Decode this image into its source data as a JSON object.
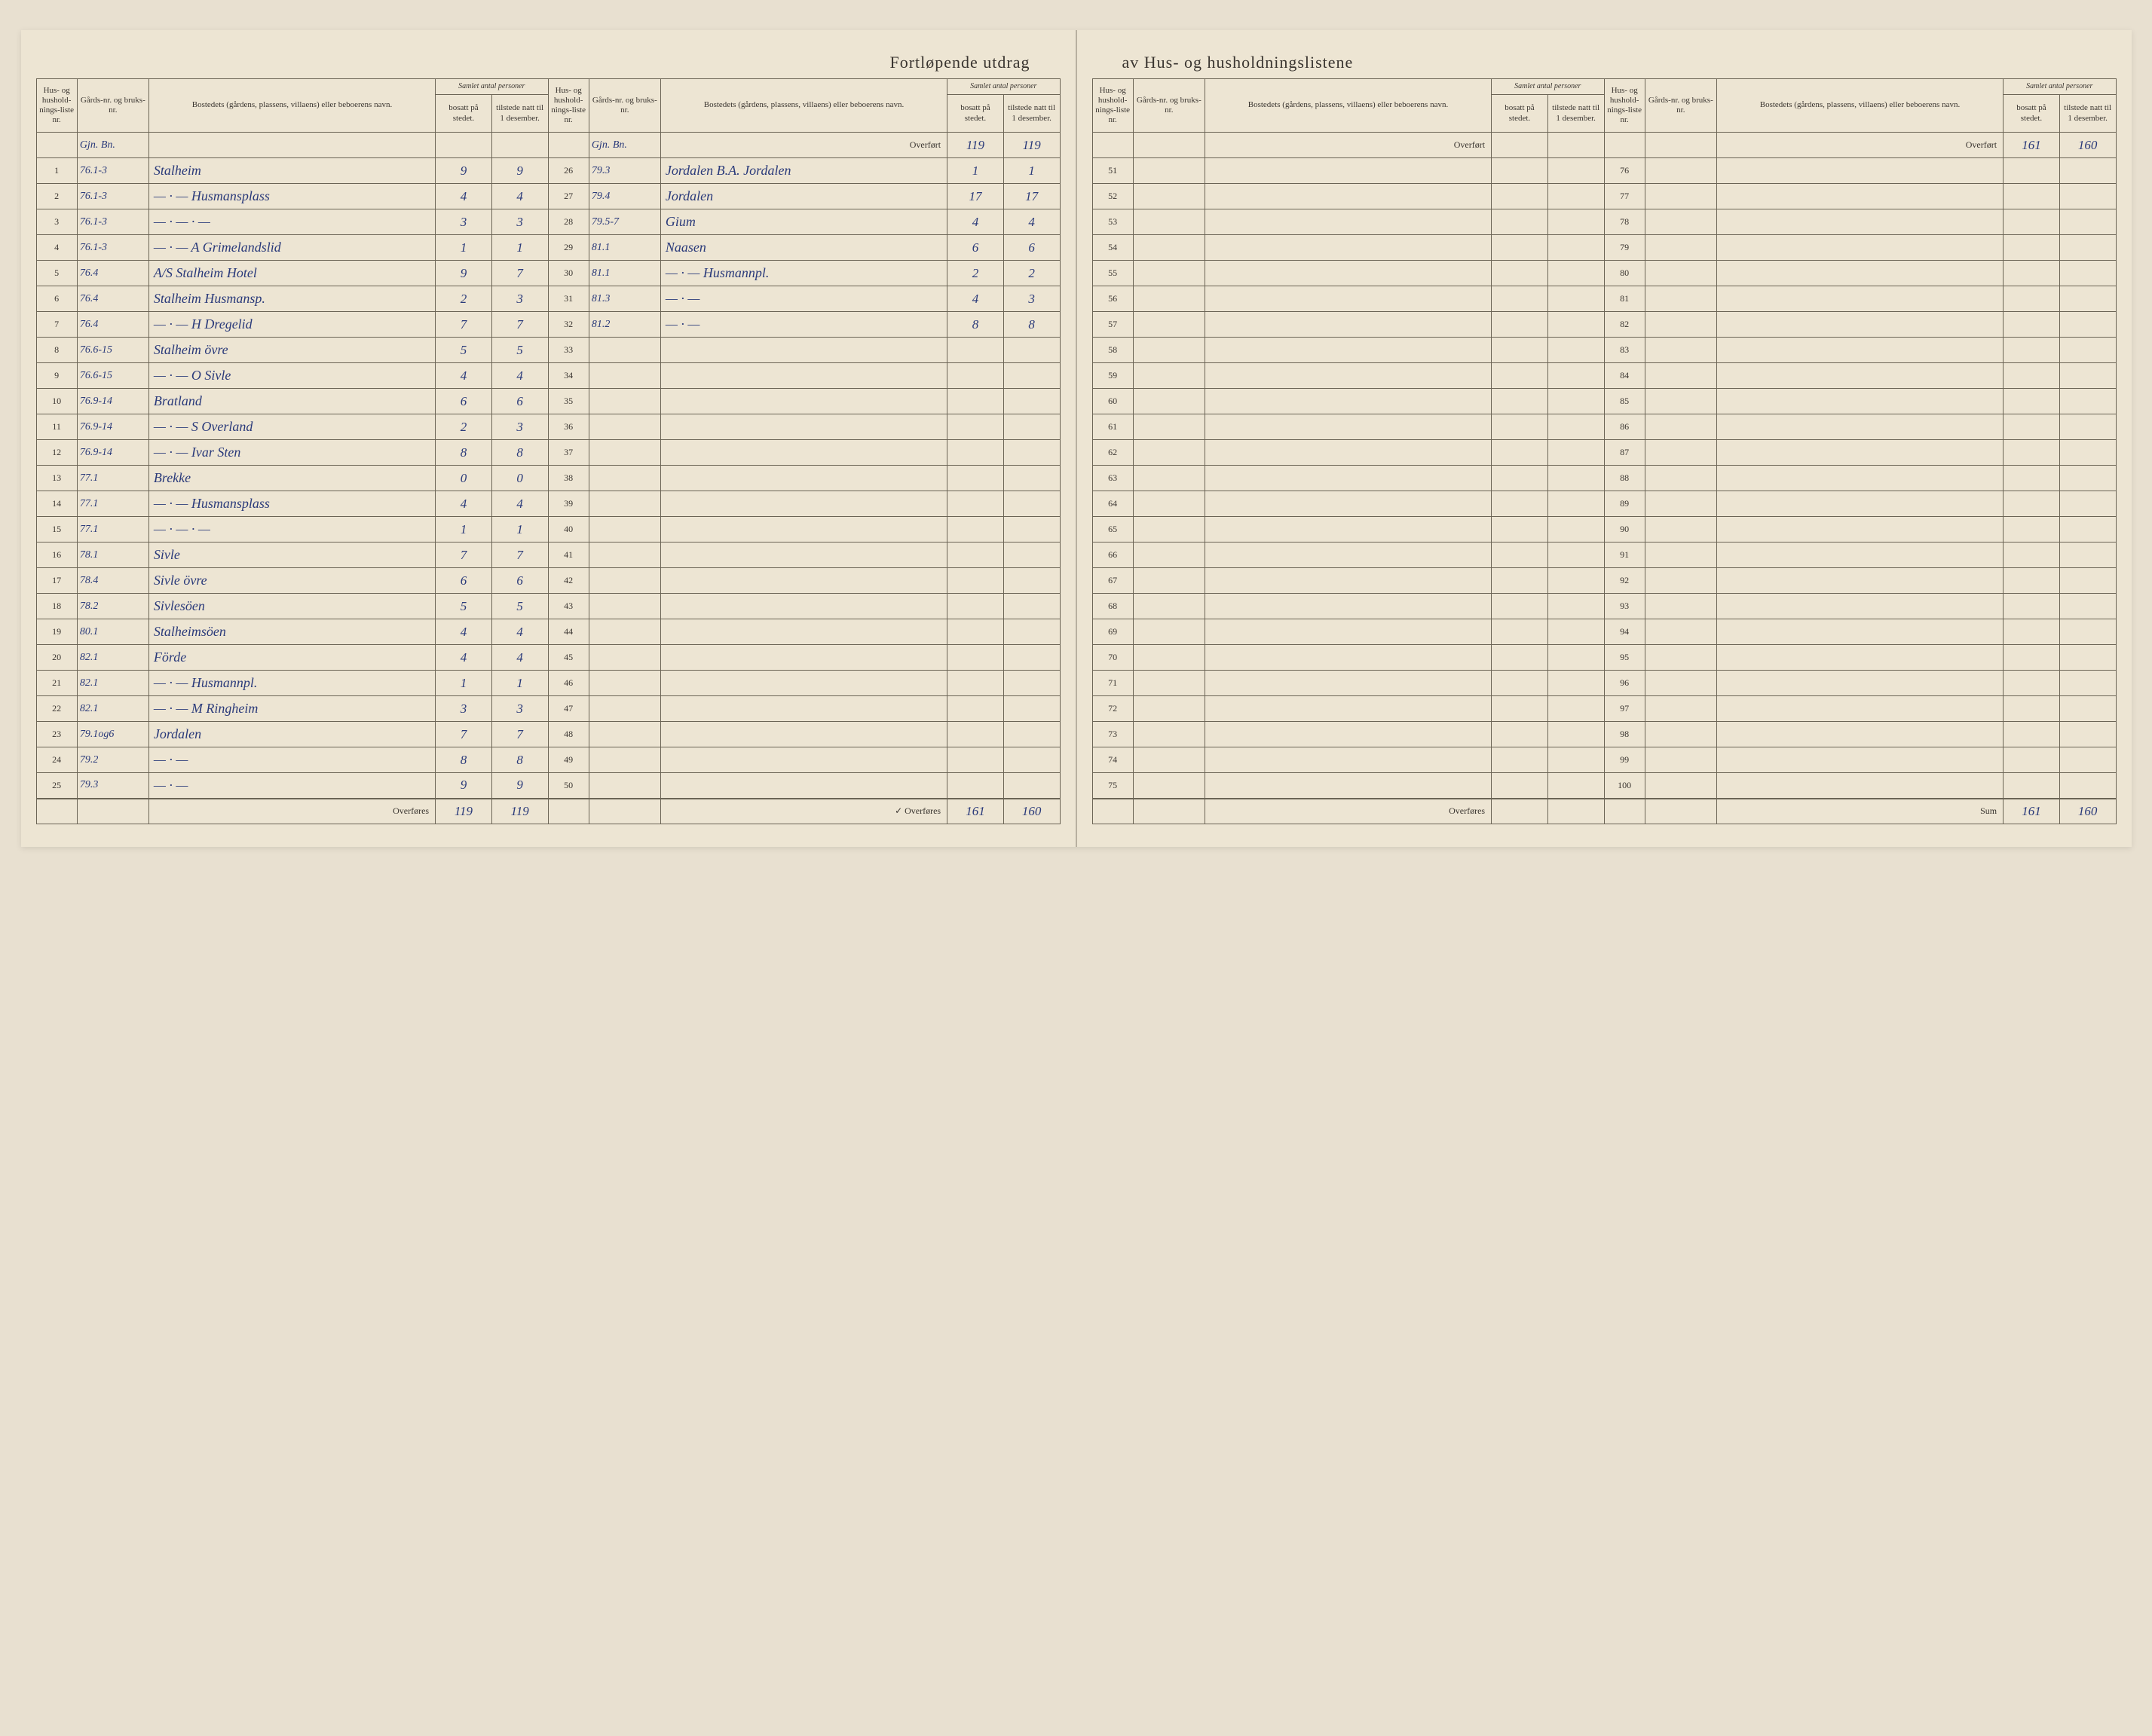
{
  "title_left": "Fortløpende utdrag",
  "title_right": "av Hus- og husholdningslistene",
  "headers": {
    "liste": "Hus- og hushold-nings-liste nr.",
    "bruks": "Gårds-nr. og bruks-nr.",
    "bosted": "Bostedets (gårdens, plassens, villaens) eller beboerens navn.",
    "samlet": "Samlet antal personer",
    "bosatt": "bosatt på stedet.",
    "tilstede": "tilstede natt til 1 desember."
  },
  "overfort": "Overført",
  "overfores": "Overføres",
  "sum": "Sum",
  "rows_a": [
    {
      "n": "1",
      "bruks": "76.1-3",
      "name": "Stalheim",
      "b": "9",
      "t": "9"
    },
    {
      "n": "2",
      "bruks": "76.1-3",
      "name": "— · — Husmansplass",
      "b": "4",
      "t": "4"
    },
    {
      "n": "3",
      "bruks": "76.1-3",
      "name": "— · — · —",
      "b": "3",
      "t": "3"
    },
    {
      "n": "4",
      "bruks": "76.1-3",
      "name": "— · — A Grimelandslid",
      "b": "1",
      "t": "1"
    },
    {
      "n": "5",
      "bruks": "76.4",
      "name": "A/S Stalheim Hotel",
      "b": "9",
      "t": "7"
    },
    {
      "n": "6",
      "bruks": "76.4",
      "name": "Stalheim Husmansp.",
      "b": "2",
      "t": "3"
    },
    {
      "n": "7",
      "bruks": "76.4",
      "name": "— · — H Dregelid",
      "b": "7",
      "t": "7"
    },
    {
      "n": "8",
      "bruks": "76.6-15",
      "name": "Stalheim övre",
      "b": "5",
      "t": "5"
    },
    {
      "n": "9",
      "bruks": "76.6-15",
      "name": "— · — O Sivle",
      "b": "4",
      "t": "4"
    },
    {
      "n": "10",
      "bruks": "76.9-14",
      "name": "Bratland",
      "b": "6",
      "t": "6"
    },
    {
      "n": "11",
      "bruks": "76.9-14",
      "name": "— · — S Overland",
      "b": "2",
      "t": "3"
    },
    {
      "n": "12",
      "bruks": "76.9-14",
      "name": "— · — Ivar Sten",
      "b": "8",
      "t": "8"
    },
    {
      "n": "13",
      "bruks": "77.1",
      "name": "Brekke",
      "b": "0",
      "t": "0"
    },
    {
      "n": "14",
      "bruks": "77.1",
      "name": "— · — Husmansplass",
      "b": "4",
      "t": "4"
    },
    {
      "n": "15",
      "bruks": "77.1",
      "name": "— · — · —",
      "b": "1",
      "t": "1"
    },
    {
      "n": "16",
      "bruks": "78.1",
      "name": "Sivle",
      "b": "7",
      "t": "7"
    },
    {
      "n": "17",
      "bruks": "78.4",
      "name": "Sivle övre",
      "b": "6",
      "t": "6"
    },
    {
      "n": "18",
      "bruks": "78.2",
      "name": "Sivlesöen",
      "b": "5",
      "t": "5"
    },
    {
      "n": "19",
      "bruks": "80.1",
      "name": "Stalheimsöen",
      "b": "4",
      "t": "4"
    },
    {
      "n": "20",
      "bruks": "82.1",
      "name": "Förde",
      "b": "4",
      "t": "4"
    },
    {
      "n": "21",
      "bruks": "82.1",
      "name": "— · — Husmannpl.",
      "b": "1",
      "t": "1"
    },
    {
      "n": "22",
      "bruks": "82.1",
      "name": "— · — M Ringheim",
      "b": "3",
      "t": "3"
    },
    {
      "n": "23",
      "bruks": "79.1og6",
      "name": "Jordalen",
      "b": "7",
      "t": "7"
    },
    {
      "n": "24",
      "bruks": "79.2",
      "name": "— · —",
      "b": "8",
      "t": "8"
    },
    {
      "n": "25",
      "bruks": "79.3",
      "name": "— · —",
      "b": "9",
      "t": "9"
    }
  ],
  "sum_a": {
    "b": "119",
    "t": "119"
  },
  "overfort_b": {
    "b": "119",
    "t": "119"
  },
  "rows_b": [
    {
      "n": "26",
      "bruks": "79.3",
      "name": "Jordalen B.A. Jordalen",
      "b": "1",
      "t": "1"
    },
    {
      "n": "27",
      "bruks": "79.4",
      "name": "Jordalen",
      "b": "17",
      "t": "17"
    },
    {
      "n": "28",
      "bruks": "79.5-7",
      "name": "Gium",
      "b": "4",
      "t": "4"
    },
    {
      "n": "29",
      "bruks": "81.1",
      "name": "Naasen",
      "b": "6",
      "t": "6"
    },
    {
      "n": "30",
      "bruks": "81.1",
      "name": "— · — Husmannpl.",
      "b": "2",
      "t": "2"
    },
    {
      "n": "31",
      "bruks": "81.3",
      "name": "— · —",
      "b": "4",
      "t": "3"
    },
    {
      "n": "32",
      "bruks": "81.2",
      "name": "— · —",
      "b": "8",
      "t": "8"
    },
    {
      "n": "33",
      "bruks": "",
      "name": "",
      "b": "",
      "t": ""
    },
    {
      "n": "34",
      "bruks": "",
      "name": "",
      "b": "",
      "t": ""
    },
    {
      "n": "35",
      "bruks": "",
      "name": "",
      "b": "",
      "t": ""
    },
    {
      "n": "36",
      "bruks": "",
      "name": "",
      "b": "",
      "t": ""
    },
    {
      "n": "37",
      "bruks": "",
      "name": "",
      "b": "",
      "t": ""
    },
    {
      "n": "38",
      "bruks": "",
      "name": "",
      "b": "",
      "t": ""
    },
    {
      "n": "39",
      "bruks": "",
      "name": "",
      "b": "",
      "t": ""
    },
    {
      "n": "40",
      "bruks": "",
      "name": "",
      "b": "",
      "t": ""
    },
    {
      "n": "41",
      "bruks": "",
      "name": "",
      "b": "",
      "t": ""
    },
    {
      "n": "42",
      "bruks": "",
      "name": "",
      "b": "",
      "t": ""
    },
    {
      "n": "43",
      "bruks": "",
      "name": "",
      "b": "",
      "t": ""
    },
    {
      "n": "44",
      "bruks": "",
      "name": "",
      "b": "",
      "t": ""
    },
    {
      "n": "45",
      "bruks": "",
      "name": "",
      "b": "",
      "t": ""
    },
    {
      "n": "46",
      "bruks": "",
      "name": "",
      "b": "",
      "t": ""
    },
    {
      "n": "47",
      "bruks": "",
      "name": "",
      "b": "",
      "t": ""
    },
    {
      "n": "48",
      "bruks": "",
      "name": "",
      "b": "",
      "t": ""
    },
    {
      "n": "49",
      "bruks": "",
      "name": "",
      "b": "",
      "t": ""
    },
    {
      "n": "50",
      "bruks": "",
      "name": "",
      "b": "",
      "t": ""
    }
  ],
  "sum_b": {
    "b": "161",
    "t": "160"
  },
  "rows_c_start": 51,
  "rows_d_start": 76,
  "overfort_d": {
    "b": "161",
    "t": "160"
  },
  "sum_d": {
    "b": "161",
    "t": "160"
  },
  "header_note": "Gjn. Bn."
}
